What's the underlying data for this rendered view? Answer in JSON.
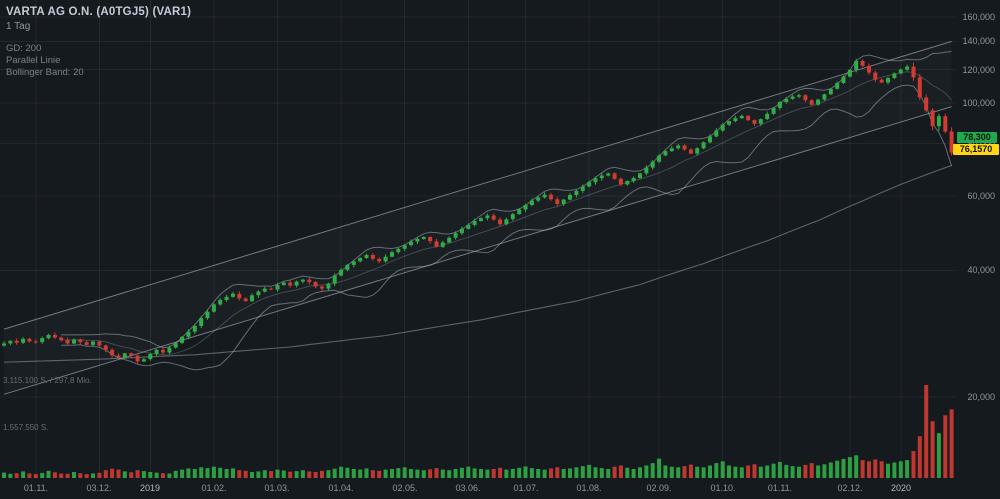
{
  "colors": {
    "background": "#151a1f",
    "grid": "rgba(255,255,255,0.06)",
    "up": "#31ad47",
    "down": "#d23b31",
    "band": "rgba(165,175,185,0.55)",
    "band_mid": "rgba(165,175,185,0.30)",
    "gd200": "rgba(150,160,170,0.55)",
    "channel": "rgba(205,213,221,0.50)",
    "channel_fill": "rgba(255,255,255,0.025)",
    "badge_green": "#21a94d",
    "badge_yellow": "#ffd514"
  },
  "chart_data": {
    "type": "candlestick",
    "title": "VARTA AG O.N. (A0TGJ5) (VAR1)",
    "timeframe": "1 Tag",
    "scale": "log",
    "indicators": {
      "gd200": "GD: 200",
      "parallel": "Parallel Linie",
      "bollinger": "Bollinger Band: 20"
    },
    "y_ticks": [
      {
        "label": "160,000",
        "price": 160
      },
      {
        "label": "140,000",
        "price": 140
      },
      {
        "label": "120,000",
        "price": 120
      },
      {
        "label": "100,000",
        "price": 100
      },
      {
        "label": "80,000",
        "price": 80
      },
      {
        "label": "60,000",
        "price": 60
      },
      {
        "label": "40,000",
        "price": 40
      },
      {
        "label": "20,000",
        "price": 20
      }
    ],
    "x_ticks": [
      {
        "label": "01.11.",
        "i": 5
      },
      {
        "label": "03.12.",
        "i": 15
      },
      {
        "label": "2019",
        "i": 23
      },
      {
        "label": "01.02.",
        "i": 33
      },
      {
        "label": "01.03.",
        "i": 43
      },
      {
        "label": "01.04.",
        "i": 53
      },
      {
        "label": "02.05.",
        "i": 63
      },
      {
        "label": "03.06.",
        "i": 73
      },
      {
        "label": "01.07.",
        "i": 82
      },
      {
        "label": "01.08.",
        "i": 92
      },
      {
        "label": "02.09.",
        "i": 103
      },
      {
        "label": "01.10.",
        "i": 113
      },
      {
        "label": "01.11.",
        "i": 122
      },
      {
        "label": "02.12.",
        "i": 133
      },
      {
        "label": "2020",
        "i": 141
      }
    ],
    "days_per_candle": 2,
    "closes": [
      26.8,
      27.2,
      26.9,
      27.5,
      27.1,
      27.0,
      27.6,
      28.1,
      27.7,
      27.3,
      26.8,
      27.4,
      27.0,
      26.6,
      27.1,
      26.5,
      25.9,
      25.1,
      24.8,
      25.4,
      25.1,
      24.3,
      24.6,
      25.3,
      25.9,
      25.5,
      26.2,
      26.9,
      27.8,
      28.6,
      29.5,
      30.8,
      31.9,
      33.2,
      34.0,
      34.6,
      35.2,
      34.3,
      33.8,
      34.9,
      35.6,
      36.2,
      36.0,
      36.9,
      37.4,
      36.8,
      37.6,
      38.0,
      37.5,
      36.6,
      36.2,
      37.2,
      38.9,
      40.1,
      41.2,
      42.0,
      42.8,
      43.5,
      42.6,
      42.0,
      43.1,
      44.2,
      45.0,
      45.9,
      46.8,
      47.5,
      48.0,
      46.9,
      45.5,
      46.6,
      47.8,
      49.0,
      50.2,
      51.3,
      52.4,
      53.2,
      54.0,
      52.8,
      51.5,
      52.9,
      54.4,
      55.8,
      57.2,
      58.6,
      59.6,
      60.5,
      59.0,
      57.5,
      58.9,
      60.4,
      61.8,
      63.3,
      64.8,
      66.2,
      67.2,
      68.0,
      66.0,
      64.0,
      65.2,
      66.3,
      68.0,
      70.2,
      72.5,
      75.0,
      76.8,
      78.0,
      79.2,
      77.5,
      75.8,
      78.0,
      80.6,
      83.2,
      86.0,
      88.8,
      90.5,
      92.0,
      93.2,
      91.0,
      89.2,
      91.5,
      94.2,
      97.3,
      100.5,
      102.2,
      103.5,
      104.3,
      101.5,
      99.0,
      101.8,
      104.8,
      108.0,
      111.5,
      115.5,
      119.8,
      125.8,
      122.5,
      118.0,
      113.5,
      111.8,
      114.5,
      117.5,
      120.0,
      122.0,
      115.0,
      103.0,
      96.0,
      88.0,
      93.0,
      85.5,
      76.16
    ],
    "first_open": 26.5,
    "volumes_k": [
      180,
      140,
      160,
      220,
      150,
      130,
      170,
      240,
      190,
      150,
      140,
      200,
      160,
      130,
      150,
      170,
      260,
      310,
      280,
      220,
      190,
      260,
      230,
      200,
      180,
      160,
      150,
      240,
      280,
      320,
      300,
      360,
      330,
      380,
      340,
      300,
      320,
      260,
      240,
      200,
      220,
      260,
      230,
      280,
      250,
      210,
      230,
      260,
      220,
      200,
      240,
      260,
      310,
      380,
      340,
      300,
      280,
      320,
      260,
      240,
      280,
      300,
      330,
      360,
      300,
      280,
      260,
      290,
      330,
      280,
      260,
      300,
      340,
      380,
      320,
      300,
      280,
      300,
      340,
      280,
      300,
      340,
      390,
      330,
      300,
      280,
      320,
      360,
      300,
      320,
      360,
      400,
      440,
      360,
      330,
      300,
      380,
      420,
      340,
      300,
      360,
      420,
      500,
      650,
      420,
      380,
      360,
      400,
      450,
      380,
      360,
      420,
      500,
      560,
      420,
      380,
      360,
      420,
      460,
      380,
      420,
      480,
      540,
      440,
      400,
      380,
      440,
      500,
      420,
      460,
      520,
      580,
      640,
      700,
      760,
      600,
      560,
      620,
      560,
      480,
      520,
      560,
      600,
      900,
      1400,
      3115,
      1900,
      1500,
      2100,
      2300
    ],
    "gd200_anchors": [
      [
        0,
        24.2
      ],
      [
        15,
        24.6
      ],
      [
        30,
        25.2
      ],
      [
        45,
        26.3
      ],
      [
        60,
        28.0
      ],
      [
        75,
        30.5
      ],
      [
        90,
        33.8
      ],
      [
        100,
        37.0
      ],
      [
        110,
        41.5
      ],
      [
        120,
        47.0
      ],
      [
        128,
        52.5
      ],
      [
        135,
        58.5
      ],
      [
        141,
        64.0
      ],
      [
        145,
        67.5
      ],
      [
        149,
        71.0
      ]
    ],
    "channel": {
      "upper_start_price": 29.0,
      "upper_end_price": 140.0,
      "lower_start_price": 20.3,
      "lower_end_price": 98.0
    },
    "bollinger": {
      "period_days": 20,
      "mult": 2
    },
    "volume_axis": {
      "label_max": "3.115.100 S. / 297,8 Mio.",
      "label_half": "1.557.550 S.",
      "max_shares_k": 3115
    },
    "price_badges": {
      "green": "78,300",
      "yellow": "76,1570"
    }
  }
}
